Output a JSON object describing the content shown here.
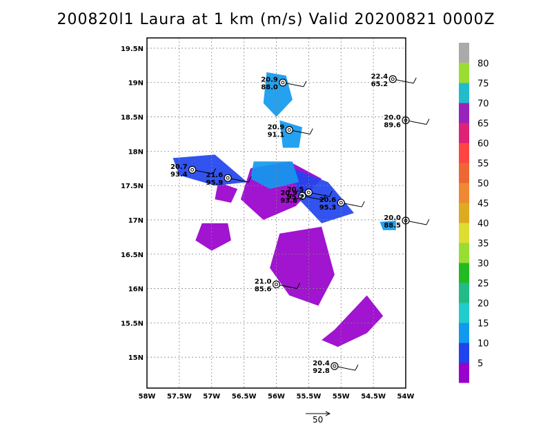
{
  "chart_data": {
    "type": "scatter",
    "title": "200820l1 Laura at 1 km (m/s) Valid 20200821 0000Z",
    "xlim": [
      -58.0,
      -54.0
    ],
    "ylim": [
      14.55,
      19.65
    ],
    "x_ticks": [
      -58,
      -57.5,
      -57,
      -56.5,
      -56,
      -55.5,
      -55,
      -54.5,
      -54
    ],
    "x_tick_labels": [
      "58W",
      "57.5W",
      "57W",
      "56.5W",
      "56W",
      "55.5W",
      "55W",
      "54.5W",
      "54W"
    ],
    "y_ticks": [
      15,
      15.5,
      16,
      16.5,
      17,
      17.5,
      18,
      18.5,
      19,
      19.5
    ],
    "y_tick_labels": [
      "15N",
      "15.5N",
      "16N",
      "16.5N",
      "17N",
      "17.5N",
      "18N",
      "18.5N",
      "19N",
      "19.5N"
    ],
    "grid": true,
    "colorbar": {
      "labels": [
        "5",
        "10",
        "15",
        "20",
        "25",
        "30",
        "35",
        "40",
        "45",
        "50",
        "55",
        "60",
        "65",
        "70",
        "75",
        "80"
      ],
      "colors": [
        "#9900cc",
        "#2244ee",
        "#1199ee",
        "#22cccc",
        "#22bb88",
        "#22bb22",
        "#99dd33",
        "#dddd33",
        "#ddaa22",
        "#ee8833",
        "#ee6633",
        "#ff4444",
        "#dd2277",
        "#9922bb",
        "#22bbcc",
        "#99dd33"
      ],
      "top_color": "#aaaaaa"
    },
    "reference_vector": {
      "label": "50"
    },
    "observations": [
      {
        "lon": -55.9,
        "lat": 19.0,
        "t": "20.9",
        "p": "88.0"
      },
      {
        "lon": -55.8,
        "lat": 18.31,
        "t": "20.9",
        "p": "91.1"
      },
      {
        "lon": -54.2,
        "lat": 19.05,
        "t": "22.4",
        "p": "65.2"
      },
      {
        "lon": -54.0,
        "lat": 18.45,
        "t": "20.0",
        "p": "89.6"
      },
      {
        "lon": -57.3,
        "lat": 17.73,
        "t": "20.7",
        "p": "93.4"
      },
      {
        "lon": -56.75,
        "lat": 17.61,
        "t": "21.6",
        "p": "95.9"
      },
      {
        "lon": -55.6,
        "lat": 17.35,
        "t": "20.9",
        "p": "93.8"
      },
      {
        "lon": -55.5,
        "lat": 17.4,
        "t": "20.5",
        "p": "95.2"
      },
      {
        "lon": -55.0,
        "lat": 17.25,
        "t": "20.6",
        "p": "95.3"
      },
      {
        "lon": -54.0,
        "lat": 16.99,
        "t": "20.0",
        "p": "88.5"
      },
      {
        "lon": -56.0,
        "lat": 16.06,
        "t": "21.0",
        "p": "85.6"
      },
      {
        "lon": -55.1,
        "lat": 14.87,
        "t": "20.4",
        "p": "92.8"
      }
    ]
  }
}
